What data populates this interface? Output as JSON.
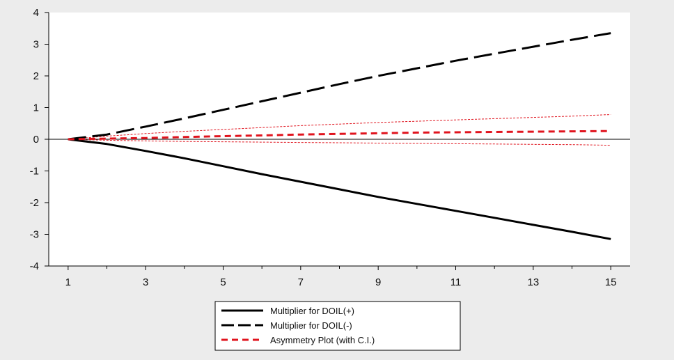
{
  "chart_data": {
    "type": "line",
    "title": "",
    "xlabel": "",
    "ylabel": "",
    "x": [
      1,
      2,
      3,
      4,
      5,
      6,
      7,
      8,
      9,
      10,
      11,
      12,
      13,
      14,
      15
    ],
    "x_ticks": [
      1,
      3,
      5,
      7,
      9,
      11,
      13,
      15
    ],
    "x_tick_labels": [
      "1",
      "3",
      "5",
      "7",
      "9",
      "11",
      "13",
      "15"
    ],
    "xlim": [
      0.5,
      15.5
    ],
    "y_ticks": [
      -4,
      -3,
      -2,
      -1,
      0,
      1,
      2,
      3,
      4
    ],
    "y_tick_labels": [
      "-4",
      "-3",
      "-2",
      "-1",
      "0",
      "1",
      "2",
      "3",
      "4"
    ],
    "ylim": [
      -4,
      4
    ],
    "grid": false,
    "legend_position": "bottom-center",
    "series": [
      {
        "name": "Multiplier for DOIL(+)",
        "style": "solid",
        "color": "#000000",
        "values": [
          0,
          -0.15,
          -0.37,
          -0.6,
          -0.85,
          -1.1,
          -1.34,
          -1.58,
          -1.82,
          -2.04,
          -2.26,
          -2.48,
          -2.7,
          -2.92,
          -3.15
        ]
      },
      {
        "name": "Multiplier for DOIL(-)",
        "style": "long-dash",
        "color": "#000000",
        "values": [
          0,
          0.15,
          0.4,
          0.66,
          0.93,
          1.2,
          1.47,
          1.74,
          2.0,
          2.24,
          2.48,
          2.7,
          2.92,
          3.14,
          3.35
        ]
      },
      {
        "name": "Asymmetry Plot (with C.I.)",
        "style": "short-dash",
        "color": "#e0141e",
        "values": [
          0,
          0.02,
          0.04,
          0.07,
          0.1,
          0.12,
          0.15,
          0.17,
          0.19,
          0.21,
          0.22,
          0.23,
          0.24,
          0.25,
          0.26
        ]
      }
    ],
    "confidence_band": {
      "color": "#e0141e",
      "upper": [
        0,
        0.1,
        0.18,
        0.25,
        0.31,
        0.37,
        0.43,
        0.48,
        0.53,
        0.57,
        0.61,
        0.65,
        0.69,
        0.73,
        0.78
      ],
      "lower": [
        0,
        -0.03,
        -0.05,
        -0.07,
        -0.08,
        -0.09,
        -0.1,
        -0.11,
        -0.12,
        -0.13,
        -0.14,
        -0.15,
        -0.16,
        -0.17,
        -0.19
      ]
    }
  }
}
